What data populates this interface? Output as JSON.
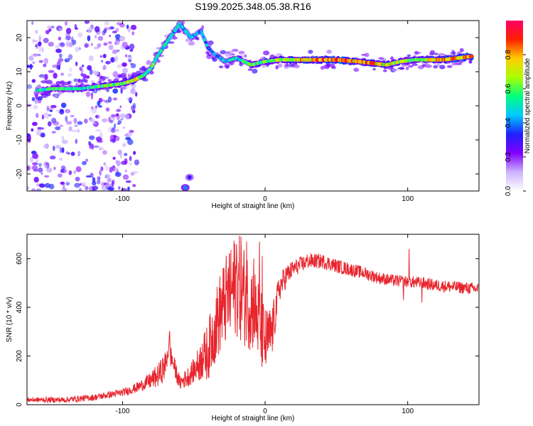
{
  "title": "S199.2025.348.05.38.R16",
  "colors": {
    "snr_line": "#e8242c",
    "colormap": [
      "#ffffff",
      "#ccb3ff",
      "#8000ff",
      "#2020ff",
      "#00c8ff",
      "#00ff80",
      "#aaff00",
      "#ffcc00",
      "#ff2000",
      "#ff0066"
    ]
  },
  "chart_data": [
    {
      "type": "heatmap",
      "title": "S199.2025.348.05.38.R16",
      "xlabel": "Height of straight line (km)",
      "ylabel": "Frequency (Hz)",
      "xlim": [
        -167,
        150
      ],
      "ylim": [
        -25,
        25
      ],
      "xticks": [
        -100,
        0,
        100
      ],
      "yticks": [
        -20,
        -10,
        0,
        10,
        20
      ],
      "colorbar": {
        "label": "Normalized spectral amplitude",
        "range": [
          0,
          1
        ],
        "ticks": [
          0.0,
          0.2,
          0.4,
          0.6,
          0.8
        ]
      },
      "ridge": [
        {
          "x": -160,
          "y": 4.5,
          "a": 0.5
        },
        {
          "x": -150,
          "y": 5,
          "a": 0.55
        },
        {
          "x": -140,
          "y": 5,
          "a": 0.55
        },
        {
          "x": -130,
          "y": 5,
          "a": 0.5
        },
        {
          "x": -120,
          "y": 5.5,
          "a": 0.55
        },
        {
          "x": -110,
          "y": 6,
          "a": 0.6
        },
        {
          "x": -100,
          "y": 6.5,
          "a": 0.6
        },
        {
          "x": -92,
          "y": 7.5,
          "a": 0.7
        },
        {
          "x": -85,
          "y": 9,
          "a": 0.6
        },
        {
          "x": -80,
          "y": 11,
          "a": 0.55
        },
        {
          "x": -75,
          "y": 15,
          "a": 0.5
        },
        {
          "x": -70,
          "y": 18,
          "a": 0.5
        },
        {
          "x": -65,
          "y": 21,
          "a": 0.45
        },
        {
          "x": -60,
          "y": 24,
          "a": 0.45
        },
        {
          "x": -52,
          "y": 20,
          "a": 0.45
        },
        {
          "x": -45,
          "y": 22,
          "a": 0.4
        },
        {
          "x": -40,
          "y": 17,
          "a": 0.4
        },
        {
          "x": -35,
          "y": 15,
          "a": 0.4
        },
        {
          "x": -28,
          "y": 13,
          "a": 0.45
        },
        {
          "x": -20,
          "y": 14,
          "a": 0.5
        },
        {
          "x": -10,
          "y": 12,
          "a": 0.55
        },
        {
          "x": 0,
          "y": 13,
          "a": 0.6
        },
        {
          "x": 10,
          "y": 13.5,
          "a": 0.65
        },
        {
          "x": 20,
          "y": 13.5,
          "a": 0.7
        },
        {
          "x": 35,
          "y": 13.5,
          "a": 0.8
        },
        {
          "x": 50,
          "y": 13.5,
          "a": 0.85
        },
        {
          "x": 65,
          "y": 13,
          "a": 0.75
        },
        {
          "x": 75,
          "y": 12.5,
          "a": 0.8
        },
        {
          "x": 85,
          "y": 12,
          "a": 0.7
        },
        {
          "x": 95,
          "y": 13,
          "a": 0.65
        },
        {
          "x": 105,
          "y": 13.5,
          "a": 0.6
        },
        {
          "x": 115,
          "y": 13.5,
          "a": 0.7
        },
        {
          "x": 125,
          "y": 13.5,
          "a": 0.8
        },
        {
          "x": 135,
          "y": 14,
          "a": 0.8
        },
        {
          "x": 145,
          "y": 14.5,
          "a": 0.85
        }
      ],
      "low_branch": [
        {
          "x": -56,
          "y": -24,
          "a": 0.4
        },
        {
          "x": -53,
          "y": -21,
          "a": 0.3
        }
      ],
      "noise_region_x": [
        -167,
        -100
      ],
      "noise_level": 0.25
    },
    {
      "type": "line",
      "title": "",
      "xlabel": "Height of straight line (km)",
      "ylabel": "SNR (10 * v/v)",
      "xlim": [
        -167,
        150
      ],
      "ylim": [
        0,
        700
      ],
      "xticks": [
        -100,
        0,
        100
      ],
      "yticks": [
        0,
        200,
        400,
        600
      ],
      "series": [
        {
          "name": "SNR",
          "envelope": [
            [
              -167,
              20
            ],
            [
              -140,
              20
            ],
            [
              -120,
              30
            ],
            [
              -110,
              40
            ],
            [
              -100,
              50
            ],
            [
              -90,
              70
            ],
            [
              -80,
              100
            ],
            [
              -75,
              120
            ],
            [
              -70,
              160
            ],
            [
              -68,
              230
            ],
            [
              -65,
              180
            ],
            [
              -60,
              90
            ],
            [
              -55,
              110
            ],
            [
              -50,
              140
            ],
            [
              -40,
              220
            ],
            [
              -35,
              320
            ],
            [
              -30,
              400
            ],
            [
              -25,
              450
            ],
            [
              -20,
              500
            ],
            [
              -15,
              450
            ],
            [
              -10,
              420
            ],
            [
              -5,
              350
            ],
            [
              0,
              250
            ],
            [
              5,
              300
            ],
            [
              10,
              480
            ],
            [
              15,
              530
            ],
            [
              20,
              560
            ],
            [
              30,
              590
            ],
            [
              40,
              590
            ],
            [
              50,
              570
            ],
            [
              60,
              555
            ],
            [
              70,
              540
            ],
            [
              80,
              520
            ],
            [
              90,
              510
            ],
            [
              100,
              505
            ],
            [
              110,
              500
            ],
            [
              120,
              490
            ],
            [
              130,
              485
            ],
            [
              140,
              480
            ],
            [
              150,
              475
            ]
          ],
          "spread": [
            [
              -167,
              10
            ],
            [
              -100,
              15
            ],
            [
              -85,
              25
            ],
            [
              -70,
              60
            ],
            [
              -60,
              30
            ],
            [
              -50,
              50
            ],
            [
              -40,
              120
            ],
            [
              -30,
              180
            ],
            [
              -20,
              220
            ],
            [
              -10,
              200
            ],
            [
              0,
              150
            ],
            [
              10,
              60
            ],
            [
              20,
              35
            ],
            [
              40,
              30
            ],
            [
              80,
              25
            ],
            [
              150,
              25
            ]
          ],
          "spikes": [
            [
              -67,
              300
            ],
            [
              -44,
              250
            ],
            [
              -25,
              620
            ],
            [
              -20,
              660
            ],
            [
              -17,
              690
            ],
            [
              -13,
              670
            ],
            [
              -8,
              600
            ],
            [
              -4,
              670
            ],
            [
              -2,
              610
            ],
            [
              97,
              430
            ],
            [
              101,
              640
            ],
            [
              110,
              420
            ]
          ]
        }
      ]
    }
  ]
}
